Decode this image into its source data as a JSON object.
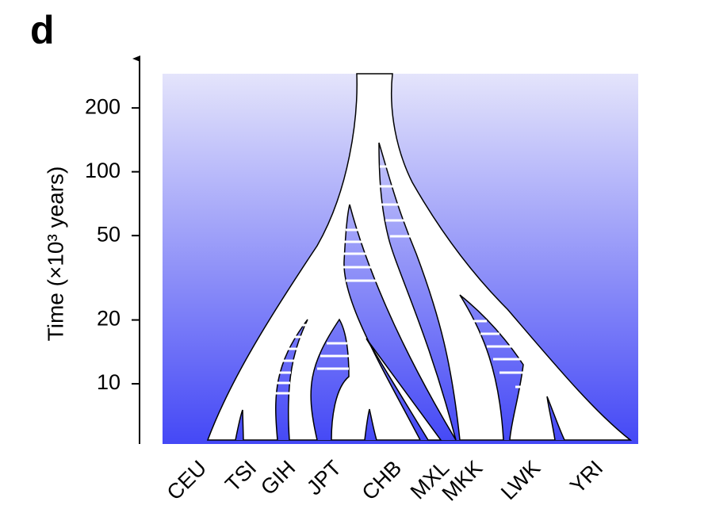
{
  "panel_label": "d",
  "chart_data": {
    "type": "tree",
    "y_label": "Time (×10³ years)",
    "categories": [
      "CEU",
      "TSI",
      "GIH",
      "JPT",
      "CHB",
      "MXL",
      "MKK",
      "LWK",
      "YRI"
    ],
    "ylim": [
      5.2,
      290
    ],
    "yticks": [
      10,
      20,
      50,
      100,
      200
    ],
    "log": true
  }
}
